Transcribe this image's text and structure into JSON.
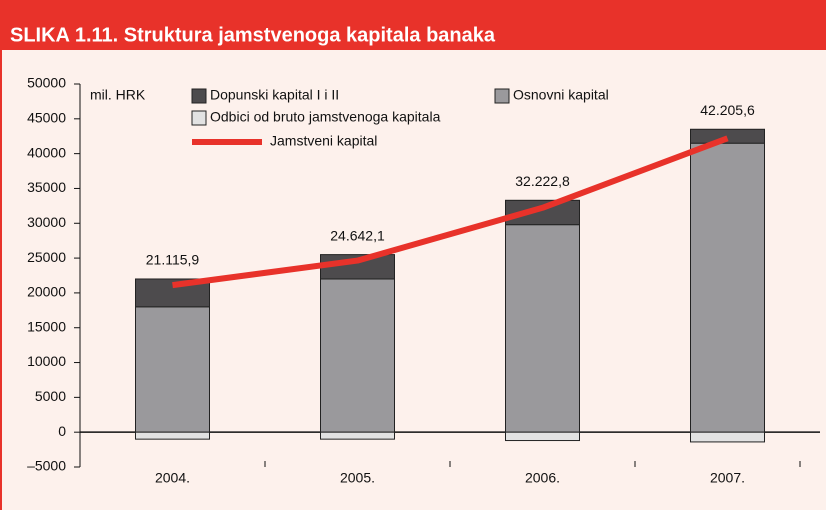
{
  "chart_data": {
    "type": "bar",
    "title": "SLIKA 1.11. Struktura jamstvenoga kapitala banaka",
    "unit_label": "mil. HRK",
    "categories": [
      "2004.",
      "2005.",
      "2006.",
      "2007."
    ],
    "series": [
      {
        "name": "Osnovni kapital",
        "color": "#9a999c",
        "values": [
          18000,
          22000,
          29800,
          41500
        ]
      },
      {
        "name": "Dopunski kapital I i II",
        "color": "#4d4b4d",
        "values": [
          4000,
          3500,
          3500,
          2000
        ]
      },
      {
        "name": "Odbici od bruto jamstvenoga kapitala",
        "color": "#e2e2e2",
        "values": [
          -1000,
          -1000,
          -1200,
          -1400
        ]
      },
      {
        "name": "Jamstveni kapital",
        "color": "#e8322a",
        "type": "line",
        "values": [
          21115.9,
          24642.1,
          32222.8,
          42205.6
        ],
        "value_labels": [
          "21.115,9",
          "24.642,1",
          "32.222,8",
          "42.205,6"
        ]
      }
    ],
    "ylim": [
      -5000,
      50000
    ],
    "yticks": [
      {
        "value": -5000,
        "label": "–5000"
      },
      0,
      5000,
      10000,
      15000,
      20000,
      25000,
      30000,
      35000,
      40000,
      45000,
      50000
    ]
  }
}
